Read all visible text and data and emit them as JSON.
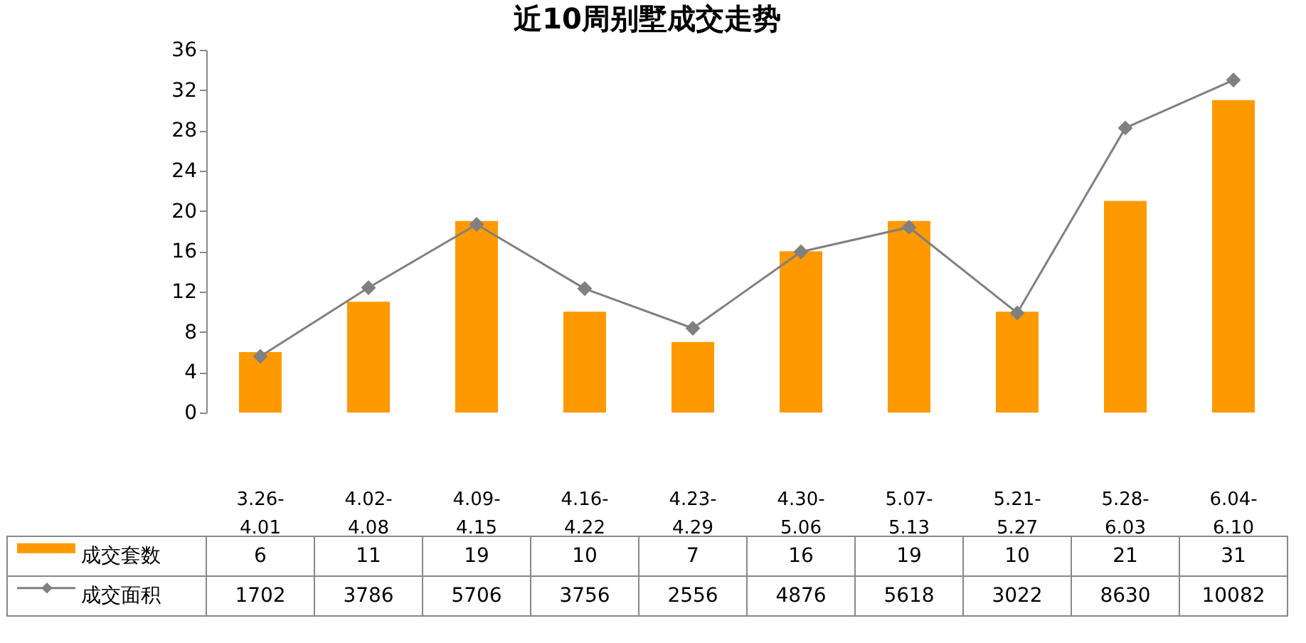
{
  "chart_data": {
    "type": "bar",
    "title": "近10周别墅成交走势",
    "categories": [
      "3.26-4.01",
      "4.02-4.08",
      "4.09-4.15",
      "4.16-4.22",
      "4.23-4.29",
      "4.30-5.06",
      "5.07-5.13",
      "5.21-5.27",
      "5.28-6.03",
      "6.04-6.10"
    ],
    "series": [
      {
        "name": "成交套数",
        "color": "#ff9900",
        "values": [
          6,
          11,
          19,
          10,
          7,
          16,
          19,
          10,
          21,
          31
        ]
      },
      {
        "name": "成交面积",
        "type": "line",
        "axis": "y2",
        "color": "#808080",
        "values": [
          1702,
          3786,
          5706,
          3756,
          2556,
          4876,
          5618,
          3022,
          8630,
          10082
        ]
      }
    ],
    "ylim": [
      0,
      36
    ],
    "yticks": [
      0,
      4,
      8,
      12,
      16,
      20,
      24,
      28,
      32,
      36
    ],
    "marker": "diamond",
    "line_style": "solid",
    "legend": "bottom",
    "data_labels": true
  }
}
